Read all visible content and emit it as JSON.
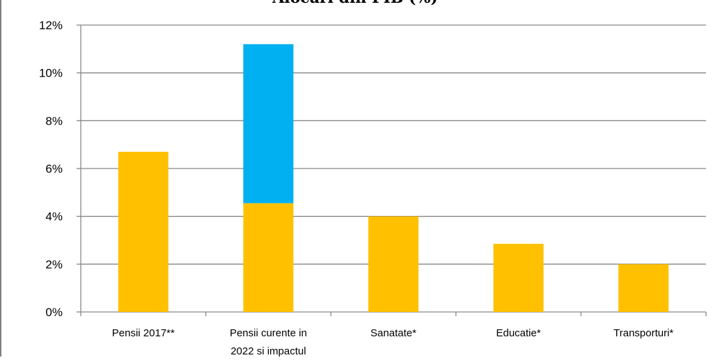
{
  "chart_data": {
    "type": "bar",
    "stacked": true,
    "title": "Alocari din PIB (%)",
    "xlabel": "",
    "ylabel": "",
    "ylim": [
      0,
      12
    ],
    "y_ticks": [
      "0%",
      "2%",
      "4%",
      "6%",
      "8%",
      "10%",
      "12%"
    ],
    "grid": true,
    "categories": [
      [
        "Pensii 2017**"
      ],
      [
        "Pensii curente in",
        "2022 si impactul"
      ],
      [
        "Sanatate*"
      ],
      [
        "Educatie*"
      ],
      [
        "Transporturi*"
      ]
    ],
    "series": [
      {
        "color": "#FFC000",
        "values": [
          6.7,
          4.55,
          4.0,
          2.85,
          2.0
        ]
      },
      {
        "color": "#00B0F0",
        "values": [
          0,
          6.65,
          0,
          0,
          0
        ]
      }
    ]
  }
}
